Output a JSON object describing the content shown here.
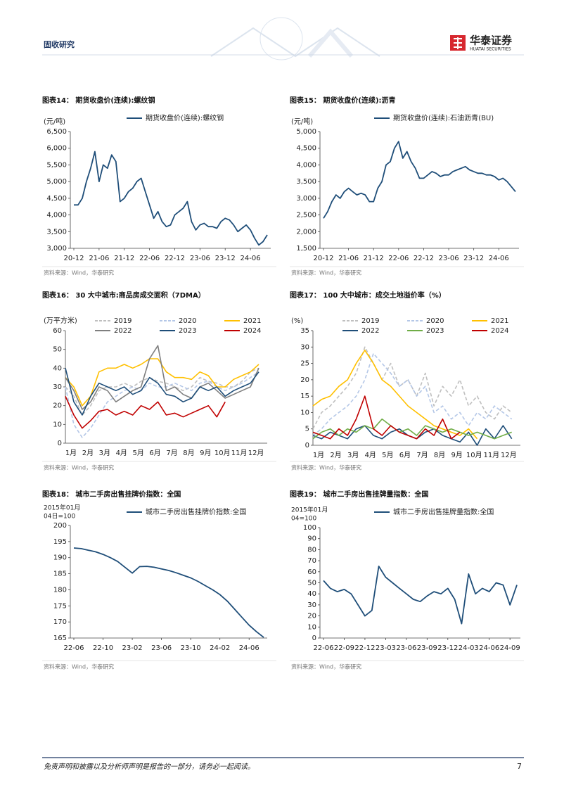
{
  "header": {
    "section": "固收研究",
    "logo_cn": "华泰证券",
    "logo_en": "HUATAI SECURITIES"
  },
  "footer": {
    "disclaimer": "免责声明和披露以及分析师声明是报告的一部分，请务必一起阅读。",
    "page": "7"
  },
  "chart_data": [
    {
      "type": "line",
      "title": "图表14：  期货收盘价(连续):螺纹钢",
      "source": "资料来源：Wind，华泰研究",
      "ylabel": "(元/吨)",
      "x": [
        "20-12",
        "21-01",
        "21-02",
        "21-03",
        "21-04",
        "21-05",
        "21-06",
        "21-07",
        "21-08",
        "21-09",
        "21-10",
        "21-11",
        "21-12",
        "22-01",
        "22-02",
        "22-03",
        "22-04",
        "22-05",
        "22-06",
        "22-07",
        "22-08",
        "22-09",
        "22-10",
        "22-11",
        "22-12",
        "23-01",
        "23-02",
        "23-03",
        "23-04",
        "23-05",
        "23-06",
        "23-07",
        "23-08",
        "23-09",
        "23-10",
        "23-11",
        "23-12",
        "24-01",
        "24-02",
        "24-03",
        "24-04",
        "24-05",
        "24-06",
        "24-07",
        "24-08",
        "24-09",
        "24-10"
      ],
      "xticks": [
        "20-12",
        "21-06",
        "21-12",
        "22-06",
        "22-12",
        "23-06",
        "23-12",
        "24-06"
      ],
      "series": [
        {
          "name": "期货收盘价(连续):螺纹钢",
          "color": "#1f4e79",
          "values": [
            4300,
            4300,
            4500,
            5000,
            5400,
            5900,
            5000,
            5500,
            5400,
            5800,
            5600,
            4400,
            4500,
            4700,
            4800,
            5000,
            5100,
            4700,
            4300,
            3900,
            4100,
            3800,
            3650,
            3700,
            4000,
            4100,
            4200,
            4400,
            3800,
            3550,
            3700,
            3750,
            3650,
            3650,
            3600,
            3800,
            3900,
            3850,
            3700,
            3500,
            3600,
            3700,
            3550,
            3300,
            3100,
            3200,
            3400
          ]
        }
      ],
      "ylim": [
        3000,
        6500
      ],
      "yticks": [
        {
          "value": 3000,
          "label": "3,000"
        },
        {
          "value": 3500,
          "label": "3,500"
        },
        {
          "value": 4000,
          "label": "4,000"
        },
        {
          "value": 4500,
          "label": "4,500"
        },
        {
          "value": 5000,
          "label": "5,000"
        },
        {
          "value": 5500,
          "label": "5,500"
        },
        {
          "value": 6000,
          "label": "6,000"
        },
        {
          "value": 6500,
          "label": "6,500"
        }
      ]
    },
    {
      "type": "line",
      "title": "图表15：  期货收盘价(连续):沥青",
      "source": "资料来源：Wind，华泰研究",
      "ylabel": "(元/吨)",
      "x": [
        "20-12",
        "21-01",
        "21-02",
        "21-03",
        "21-04",
        "21-05",
        "21-06",
        "21-07",
        "21-08",
        "21-09",
        "21-10",
        "21-11",
        "21-12",
        "22-01",
        "22-02",
        "22-03",
        "22-04",
        "22-05",
        "22-06",
        "22-07",
        "22-08",
        "22-09",
        "22-10",
        "22-11",
        "22-12",
        "23-01",
        "23-02",
        "23-03",
        "23-04",
        "23-05",
        "23-06",
        "23-07",
        "23-08",
        "23-09",
        "23-10",
        "23-11",
        "23-12",
        "24-01",
        "24-02",
        "24-03",
        "24-04",
        "24-05",
        "24-06",
        "24-07",
        "24-08",
        "24-09",
        "24-10"
      ],
      "xticks": [
        "20-12",
        "21-06",
        "21-12",
        "22-06",
        "22-12",
        "23-06",
        "23-12",
        "24-06"
      ],
      "series": [
        {
          "name": "期货收盘价(连续):石油沥青(BU)",
          "color": "#1f4e79",
          "values": [
            2400,
            2600,
            2900,
            3100,
            3000,
            3200,
            3300,
            3200,
            3100,
            3150,
            3100,
            2900,
            2900,
            3300,
            3500,
            4000,
            4100,
            4500,
            4700,
            4200,
            4400,
            4100,
            3900,
            3600,
            3600,
            3700,
            3800,
            3750,
            3650,
            3700,
            3700,
            3800,
            3850,
            3900,
            3950,
            3850,
            3800,
            3750,
            3750,
            3700,
            3700,
            3650,
            3550,
            3600,
            3500,
            3350,
            3200
          ]
        }
      ],
      "ylim": [
        1500,
        5000
      ],
      "yticks": [
        {
          "value": 1500,
          "label": "1,500"
        },
        {
          "value": 2000,
          "label": "2,000"
        },
        {
          "value": 2500,
          "label": "2,500"
        },
        {
          "value": 3000,
          "label": "3,000"
        },
        {
          "value": 3500,
          "label": "3,500"
        },
        {
          "value": 4000,
          "label": "4,000"
        },
        {
          "value": 4500,
          "label": "4,500"
        },
        {
          "value": 5000,
          "label": "5,000"
        }
      ]
    },
    {
      "type": "line",
      "title": "图表16：  30 大中城市:商品房成交面积（7DMA）",
      "source": "资料来源：Wind，华泰研究",
      "ylabel": "(万平方米)",
      "categories": [
        "1月",
        null,
        "2月",
        null,
        "3月",
        null,
        "4月",
        null,
        "5月",
        null,
        "6月",
        null,
        "7月",
        null,
        "8月",
        null,
        "9月",
        null,
        "10月",
        null,
        "11月",
        null,
        "12月",
        null
      ],
      "series": [
        {
          "name": "2019",
          "color": "#bfbfbf",
          "dash": true,
          "values": [
            30,
            25,
            15,
            20,
            28,
            30,
            30,
            32,
            30,
            33,
            35,
            33,
            32,
            30,
            28,
            30,
            35,
            33,
            32,
            30,
            30,
            33,
            38,
            40
          ]
        },
        {
          "name": "2020",
          "color": "#b4c7e7",
          "dash": true,
          "values": [
            30,
            10,
            3,
            8,
            15,
            22,
            25,
            28,
            30,
            28,
            32,
            30,
            30,
            32,
            30,
            28,
            32,
            33,
            30,
            28,
            30,
            32,
            35,
            38
          ]
        },
        {
          "name": "2021",
          "color": "#ffc000",
          "values": [
            35,
            30,
            20,
            25,
            38,
            40,
            40,
            42,
            40,
            42,
            45,
            45,
            38,
            35,
            35,
            34,
            38,
            36,
            30,
            30,
            34,
            36,
            38,
            42
          ]
        },
        {
          "name": "2022",
          "color": "#7f7f7f",
          "values": [
            35,
            28,
            18,
            22,
            30,
            28,
            22,
            25,
            28,
            30,
            45,
            52,
            28,
            30,
            26,
            24,
            30,
            32,
            28,
            24,
            26,
            28,
            30,
            40
          ]
        },
        {
          "name": "2023",
          "color": "#1f4e79",
          "values": [
            40,
            22,
            15,
            25,
            32,
            30,
            28,
            30,
            26,
            28,
            35,
            32,
            26,
            25,
            22,
            24,
            30,
            28,
            30,
            25,
            28,
            30,
            32,
            38
          ]
        },
        {
          "name": "2024",
          "color": "#c00000",
          "values": [
            25,
            15,
            8,
            12,
            17,
            18,
            15,
            17,
            15,
            20,
            18,
            22,
            15,
            16,
            14,
            16,
            18,
            20,
            14,
            22,
            null,
            null,
            null,
            null
          ]
        }
      ],
      "ylim": [
        0,
        60
      ],
      "yticks": [
        0,
        10,
        20,
        30,
        40,
        50,
        60
      ]
    },
    {
      "type": "line",
      "title": "图表17：  100 大中城市：成交土地溢价率（%）",
      "source": "资料来源：Wind，华泰研究",
      "ylabel": "(%)",
      "categories": [
        "1月",
        null,
        "2月",
        null,
        "3月",
        null,
        "4月",
        null,
        "5月",
        null,
        "6月",
        null,
        "7月",
        null,
        "8月",
        null,
        "9月",
        null,
        "10月",
        null,
        "11月",
        null,
        "12月",
        null
      ],
      "series": [
        {
          "name": "2019",
          "color": "#bfbfbf",
          "dash": true,
          "values": [
            5,
            10,
            12,
            15,
            18,
            22,
            30,
            25,
            20,
            25,
            18,
            20,
            15,
            22,
            12,
            18,
            15,
            20,
            12,
            15,
            10,
            8,
            12,
            10
          ]
        },
        {
          "name": "2020",
          "color": "#b4c7e7",
          "dash": true,
          "values": [
            3,
            5,
            8,
            10,
            12,
            15,
            20,
            28,
            25,
            22,
            18,
            20,
            15,
            18,
            10,
            12,
            8,
            10,
            6,
            10,
            8,
            12,
            10,
            8
          ]
        },
        {
          "name": "2021",
          "color": "#ffc000",
          "values": [
            12,
            14,
            15,
            18,
            20,
            25,
            29,
            25,
            20,
            18,
            15,
            12,
            10,
            8,
            6,
            5,
            4,
            3,
            5,
            2,
            null,
            null,
            null,
            null
          ]
        },
        {
          "name": "2022",
          "color": "#1f4e79",
          "values": [
            3,
            2,
            4,
            3,
            2,
            5,
            6,
            3,
            2,
            4,
            5,
            3,
            2,
            4,
            5,
            3,
            2,
            1,
            4,
            0,
            5,
            2,
            6,
            2
          ]
        },
        {
          "name": "2023",
          "color": "#70ad47",
          "values": [
            2,
            4,
            5,
            3,
            5,
            4,
            6,
            5,
            8,
            6,
            4,
            5,
            3,
            6,
            5,
            4,
            5,
            4,
            3,
            4,
            3,
            2,
            3,
            4
          ]
        },
        {
          "name": "2024",
          "color": "#c00000",
          "values": [
            4,
            3,
            2,
            5,
            3,
            8,
            15,
            5,
            3,
            6,
            4,
            3,
            2,
            5,
            3,
            8,
            2,
            4,
            null,
            null,
            null,
            null,
            null,
            null
          ]
        }
      ],
      "ylim": [
        0,
        35
      ],
      "yticks": [
        0,
        5,
        10,
        15,
        20,
        25,
        30,
        35
      ]
    },
    {
      "type": "line",
      "title": "图表18：  城市二手房出售挂牌价指数：全国",
      "source": "资料来源：Wind，华泰研究",
      "ylabel_lines": [
        "2015年01月",
        "04日=100"
      ],
      "x": [
        "22-06",
        "22-07",
        "22-08",
        "22-09",
        "22-10",
        "22-11",
        "22-12",
        "23-01",
        "23-02",
        "23-03",
        "23-04",
        "23-05",
        "23-06",
        "23-07",
        "23-08",
        "23-09",
        "23-10",
        "23-11",
        "23-12",
        "24-01",
        "24-02",
        "24-03",
        "24-04",
        "24-05",
        "24-06",
        "24-07",
        "24-08"
      ],
      "xticks": [
        "22-06",
        "22-10",
        "23-02",
        "23-06",
        "23-10",
        "24-02",
        "24-06"
      ],
      "series": [
        {
          "name": "城市二手房出售挂牌价指数:全国",
          "color": "#1f4e79",
          "values": [
            193,
            192.8,
            192.3,
            191.8,
            191,
            190,
            188.8,
            187,
            185.2,
            187.2,
            187.3,
            187,
            186.5,
            186,
            185.3,
            184.5,
            183.7,
            182.6,
            181.3,
            180,
            178.5,
            176.5,
            174,
            171.5,
            169,
            167,
            165.2
          ]
        }
      ],
      "ylim": [
        165,
        200
      ],
      "yticks": [
        165,
        170,
        175,
        180,
        185,
        190,
        195,
        200
      ]
    },
    {
      "type": "line",
      "title": "图表19：  城市二手房出售挂牌量指数：全国",
      "source": "资料来源：Wind，华泰研究",
      "ylabel_lines": [
        "2015年01月",
        "04=100"
      ],
      "x": [
        "22-06",
        "22-07",
        "22-08",
        "22-09",
        "22-10",
        "22-11",
        "22-12",
        "23-01",
        "23-02",
        "23-03",
        "23-04",
        "23-05",
        "23-06",
        "23-07",
        "23-08",
        "23-09",
        "23-10",
        "23-11",
        "23-12",
        "24-01",
        "24-02",
        "24-03",
        "24-04",
        "24-05",
        "24-06",
        "24-07",
        "24-08",
        "24-09",
        "24-10"
      ],
      "xticks": [
        "22-06",
        "22-09",
        "22-12",
        "23-03",
        "23-06",
        "23-09",
        "23-12",
        "24-03",
        "24-06",
        "24-09"
      ],
      "series": [
        {
          "name": "城市二手房出售挂牌量指数:全国",
          "color": "#1f4e79",
          "values": [
            52,
            45,
            42,
            44,
            40,
            30,
            20,
            25,
            65,
            55,
            50,
            45,
            40,
            35,
            33,
            38,
            42,
            40,
            45,
            35,
            13,
            58,
            40,
            45,
            42,
            50,
            48,
            30,
            48
          ]
        }
      ],
      "ylim": [
        0,
        100
      ],
      "yticks": [
        0,
        10,
        20,
        30,
        40,
        50,
        60,
        70,
        80,
        90,
        100
      ]
    }
  ]
}
